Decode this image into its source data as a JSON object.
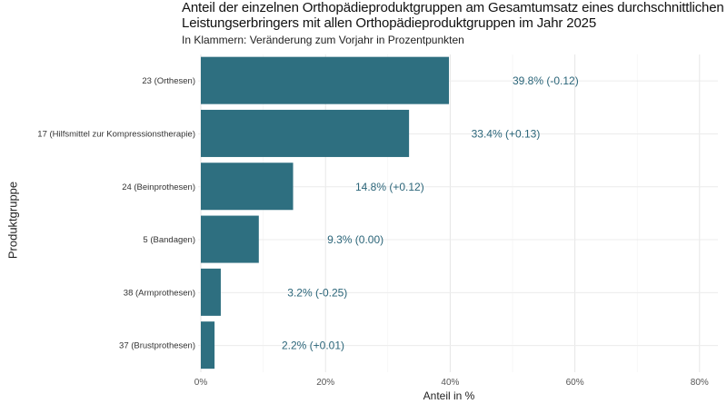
{
  "chart_data": {
    "type": "bar",
    "orientation": "horizontal",
    "title": "Anteil der einzelnen Orthopädieproduktgruppen am Gesamtumsatz eines durchschnittlichen Leistungserbringers mit allen Orthopädieproduktgruppen im Jahr 2025",
    "title_lines": [
      "Anteil der einzelnen Orthopädieproduktgruppen am Gesamtumsatz eines durchschnittlichen",
      "Leistungserbringers mit allen Orthopädieproduktgruppen im Jahr 2025"
    ],
    "subtitle": "In Klammern: Veränderung zum Vorjahr in Prozentpunkten",
    "xlabel": "Anteil in %",
    "ylabel": "Produktgruppe",
    "xlim": [
      0,
      83
    ],
    "xticks": [
      0,
      20,
      40,
      60,
      80
    ],
    "xtick_labels": [
      "0%",
      "20%",
      "40%",
      "60%",
      "80%"
    ],
    "grid": true,
    "categories": [
      "23 (Orthesen)",
      "17 (Hilfsmittel zur Kompressionstherapie)",
      "24 (Beinprothesen)",
      "5 (Bandagen)",
      "38 (Armprothesen)",
      "37 (Brustprothesen)"
    ],
    "values": [
      39.8,
      33.4,
      14.8,
      9.3,
      3.2,
      2.2
    ],
    "changes": [
      -0.12,
      0.13,
      0.12,
      0.0,
      -0.25,
      0.01
    ],
    "data_labels": [
      "39.8% (-0.12)",
      "33.4% (+0.13)",
      "14.8% (+0.12)",
      "9.3% (0.00)",
      "3.2% (-0.25)",
      "2.2% (+0.01)"
    ],
    "bar_color": "#2e6f80",
    "label_color": "#2b6579"
  }
}
